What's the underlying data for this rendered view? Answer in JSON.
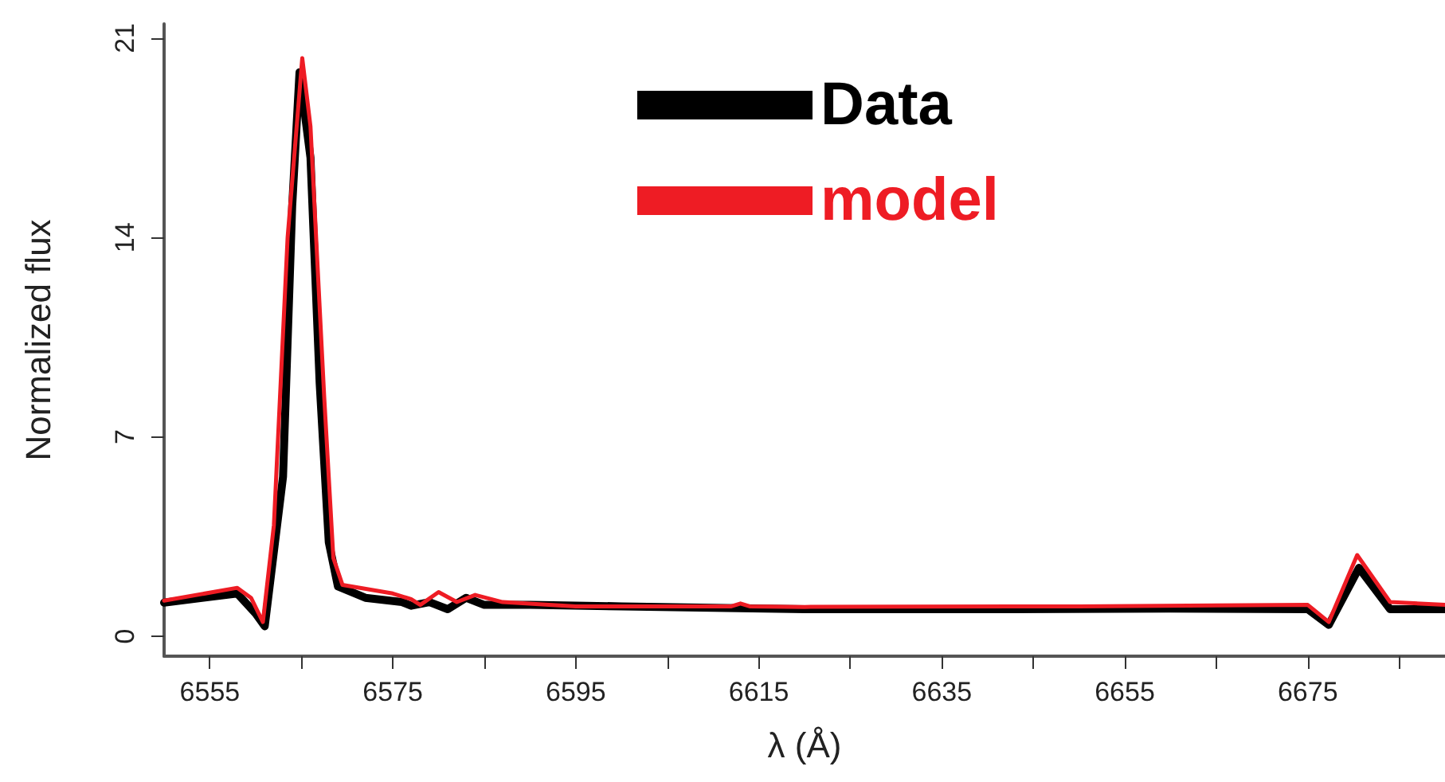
{
  "chart_data": {
    "type": "line",
    "xlabel": "λ (Å)",
    "ylabel": "Normalized flux",
    "xlim": [
      6550,
      6690
    ],
    "ylim": [
      -0.7,
      21.5
    ],
    "xticks": [
      6555,
      {
        "value": 6565,
        "label": null
      },
      6575,
      {
        "value": 6585,
        "label": null
      },
      6595,
      {
        "value": 6605,
        "label": null
      },
      6615,
      {
        "value": 6625,
        "label": null
      },
      6635,
      {
        "value": 6645,
        "label": null
      },
      6655,
      {
        "value": 6665,
        "label": null
      },
      6675,
      {
        "value": 6685,
        "label": null
      }
    ],
    "yticks": [
      0,
      7,
      14,
      21
    ],
    "grid": false,
    "legend": "top right",
    "marker": "none",
    "line_style": "solid",
    "series": [
      {
        "name": "Data",
        "color": "#000000",
        "x": [
          6550,
          6558,
          6560,
          6561,
          6563,
          6564,
          6564.8,
          6566,
          6567,
          6568,
          6569,
          6572,
          6576,
          6577,
          6579,
          6581,
          6583,
          6585,
          6590,
          6600,
          6620,
          6640,
          6660,
          6675,
          6677.3,
          6680.6,
          6684,
          6690
        ],
        "values": [
          1.18,
          1.5,
          0.8,
          0.35,
          5.6,
          15.1,
          19.8,
          16.8,
          8.9,
          3.3,
          1.75,
          1.35,
          1.2,
          1.07,
          1.2,
          0.95,
          1.35,
          1.1,
          1.1,
          1.05,
          0.95,
          0.95,
          0.97,
          0.95,
          0.4,
          2.4,
          0.95,
          0.95
        ]
      },
      {
        "name": "model",
        "color": "#ee1c24",
        "x": [
          6550,
          6558,
          6559.5,
          6560.8,
          6562,
          6563.5,
          6565.1,
          6566,
          6567.5,
          6568.5,
          6569.5,
          6575,
          6577,
          6578,
          6580,
          6582,
          6584,
          6587,
          6595,
          6612,
          6613,
          6614,
          6620,
          6650,
          6675,
          6677.3,
          6680.4,
          6684,
          6690
        ],
        "values": [
          1.25,
          1.7,
          1.35,
          0.5,
          3.9,
          14,
          20.3,
          17.9,
          8.4,
          2.75,
          1.8,
          1.5,
          1.3,
          1.1,
          1.55,
          1.2,
          1.45,
          1.2,
          1.05,
          1.05,
          1.15,
          1.05,
          1.03,
          1.05,
          1.1,
          0.5,
          2.85,
          1.2,
          1.1
        ]
      }
    ]
  }
}
